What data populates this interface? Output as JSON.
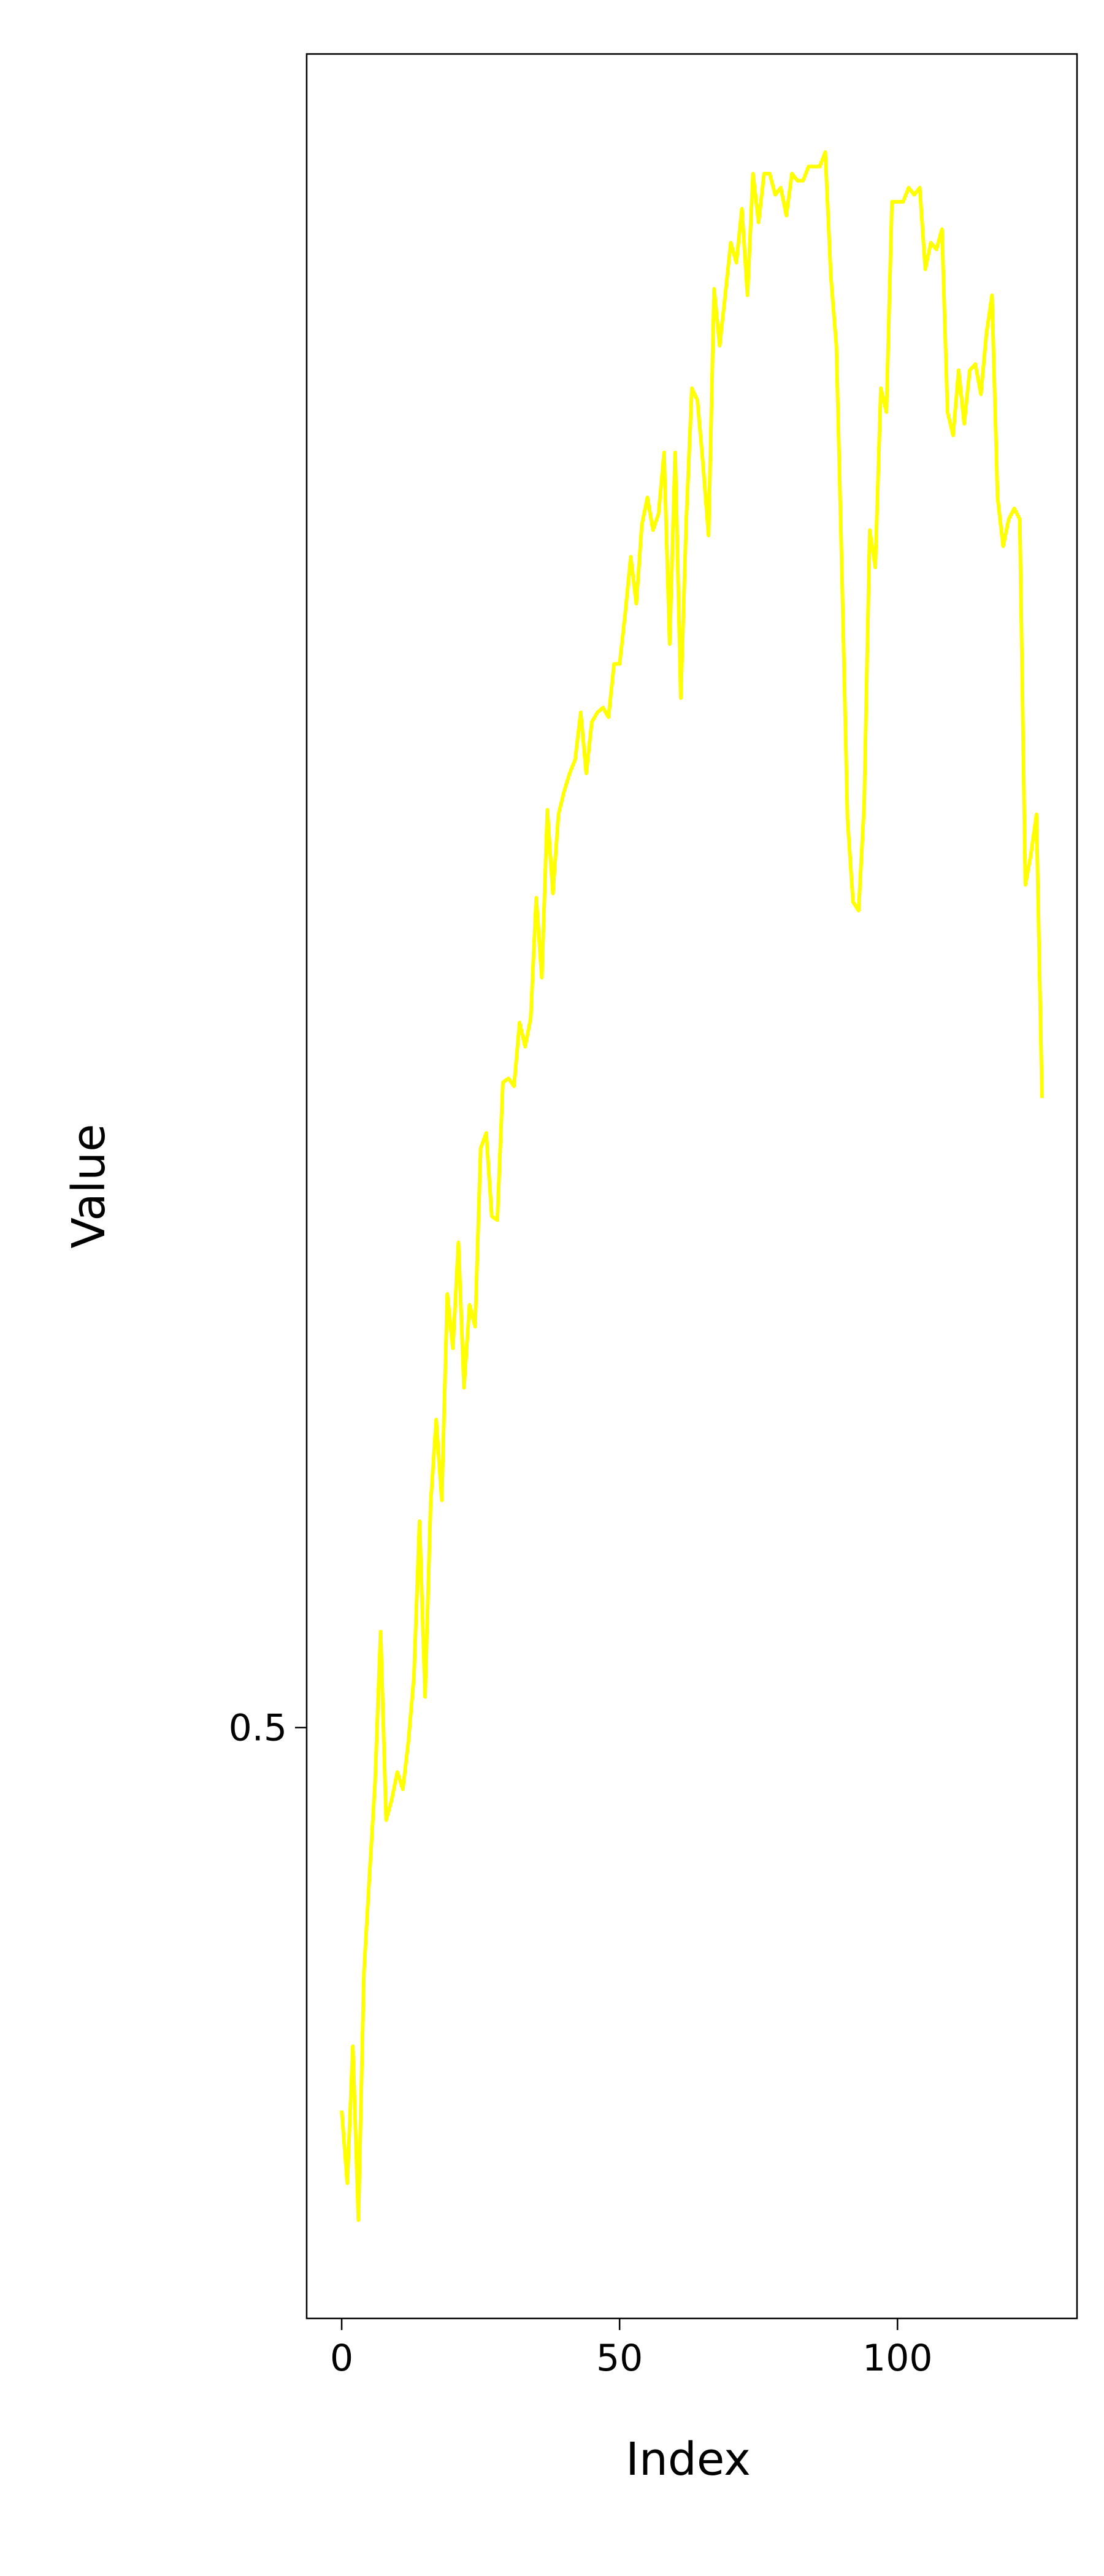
{
  "chart_data": {
    "type": "line",
    "xlabel": "Index",
    "ylabel": "Value",
    "yscale": "logit",
    "x": [
      0,
      1,
      2,
      3,
      4,
      5,
      6,
      7,
      8,
      9,
      10,
      11,
      12,
      13,
      14,
      15,
      16,
      17,
      18,
      19,
      20,
      21,
      22,
      23,
      24,
      25,
      26,
      27,
      28,
      29,
      30,
      31,
      32,
      33,
      34,
      35,
      36,
      37,
      38,
      39,
      40,
      41,
      42,
      43,
      44,
      45,
      46,
      47,
      48,
      49,
      50,
      51,
      52,
      53,
      54,
      55,
      56,
      57,
      58,
      59,
      60,
      61,
      62,
      63,
      64,
      65,
      66,
      67,
      68,
      69,
      70,
      71,
      72,
      73,
      74,
      75,
      76,
      77,
      78,
      79,
      80,
      81,
      82,
      83,
      84,
      85,
      86,
      87,
      88,
      89,
      90,
      91,
      92,
      93,
      94,
      95,
      96,
      97,
      98,
      99,
      100,
      101,
      102,
      103,
      104,
      105,
      106,
      107,
      108,
      109,
      110,
      111,
      112,
      113,
      114,
      115,
      116,
      117,
      118,
      119,
      120,
      121,
      122,
      123,
      124,
      125,
      126
    ],
    "series": [
      {
        "color": "#ffff00",
        "values": [
          0.39,
          0.37,
          0.408,
          0.36,
          0.429,
          0.457,
          0.484,
          0.528,
          0.473,
          0.479,
          0.487,
          0.482,
          0.496,
          0.515,
          0.56,
          0.509,
          0.565,
          0.589,
          0.566,
          0.624,
          0.609,
          0.638,
          0.598,
          0.621,
          0.615,
          0.663,
          0.667,
          0.645,
          0.644,
          0.68,
          0.681,
          0.679,
          0.695,
          0.689,
          0.696,
          0.725,
          0.706,
          0.745,
          0.726,
          0.744,
          0.749,
          0.753,
          0.756,
          0.766,
          0.753,
          0.764,
          0.766,
          0.767,
          0.765,
          0.776,
          0.776,
          0.786,
          0.797,
          0.788,
          0.803,
          0.808,
          0.802,
          0.805,
          0.816,
          0.78,
          0.816,
          0.769,
          0.804,
          0.827,
          0.825,
          0.814,
          0.801,
          0.843,
          0.834,
          0.842,
          0.85,
          0.847,
          0.855,
          0.842,
          0.86,
          0.853,
          0.86,
          0.86,
          0.857,
          0.858,
          0.854,
          0.86,
          0.859,
          0.859,
          0.861,
          0.861,
          0.861,
          0.863,
          0.845,
          0.834,
          0.794,
          0.743,
          0.724,
          0.722,
          0.746,
          0.802,
          0.795,
          0.827,
          0.823,
          0.856,
          0.856,
          0.856,
          0.858,
          0.857,
          0.858,
          0.846,
          0.85,
          0.849,
          0.852,
          0.823,
          0.819,
          0.83,
          0.821,
          0.83,
          0.831,
          0.826,
          0.836,
          0.842,
          0.808,
          0.799,
          0.804,
          0.806,
          0.804,
          0.728,
          0.735,
          0.744,
          0.676
        ]
      }
    ],
    "xlim": [
      -6.3,
      132.3
    ],
    "xticks": [
      0,
      50,
      100
    ],
    "ylim": [
      0.334,
      0.876
    ],
    "yticks": [
      0.5
    ]
  }
}
